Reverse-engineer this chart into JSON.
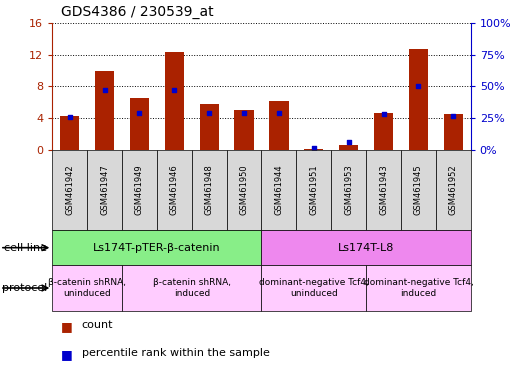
{
  "title": "GDS4386 / 230539_at",
  "samples": [
    "GSM461942",
    "GSM461947",
    "GSM461949",
    "GSM461946",
    "GSM461948",
    "GSM461950",
    "GSM461944",
    "GSM461951",
    "GSM461953",
    "GSM461943",
    "GSM461945",
    "GSM461952"
  ],
  "counts": [
    4.3,
    10.0,
    6.5,
    12.4,
    5.8,
    5.0,
    6.2,
    0.15,
    0.6,
    4.7,
    12.7,
    4.5
  ],
  "percentiles": [
    26,
    47,
    29,
    47,
    29,
    29,
    29,
    1.5,
    6,
    28,
    50,
    27
  ],
  "ylim_left": [
    0,
    16
  ],
  "ylim_right": [
    0,
    100
  ],
  "yticks_left": [
    0,
    4,
    8,
    12,
    16
  ],
  "yticks_right": [
    0,
    25,
    50,
    75,
    100
  ],
  "bar_color": "#aa2200",
  "dot_color": "#0000cc",
  "sample_bg": "#d8d8d8",
  "cell_line_groups": [
    {
      "label": "Ls174T-pTER-β-catenin",
      "start": 0,
      "end": 6,
      "color": "#88ee88"
    },
    {
      "label": "Ls174T-L8",
      "start": 6,
      "end": 12,
      "color": "#ee88ee"
    }
  ],
  "protocol_groups": [
    {
      "label": "β-catenin shRNA,\nuninduced",
      "start": 0,
      "end": 2,
      "color": "#ffccff"
    },
    {
      "label": "β-catenin shRNA,\ninduced",
      "start": 2,
      "end": 6,
      "color": "#ffccff"
    },
    {
      "label": "dominant-negative Tcf4,\nuninduced",
      "start": 6,
      "end": 9,
      "color": "#ffccff"
    },
    {
      "label": "dominant-negative Tcf4,\ninduced",
      "start": 9,
      "end": 12,
      "color": "#ffccff"
    }
  ],
  "legend_items": [
    {
      "label": "count",
      "color": "#aa2200"
    },
    {
      "label": "percentile rank within the sample",
      "color": "#0000cc"
    }
  ]
}
